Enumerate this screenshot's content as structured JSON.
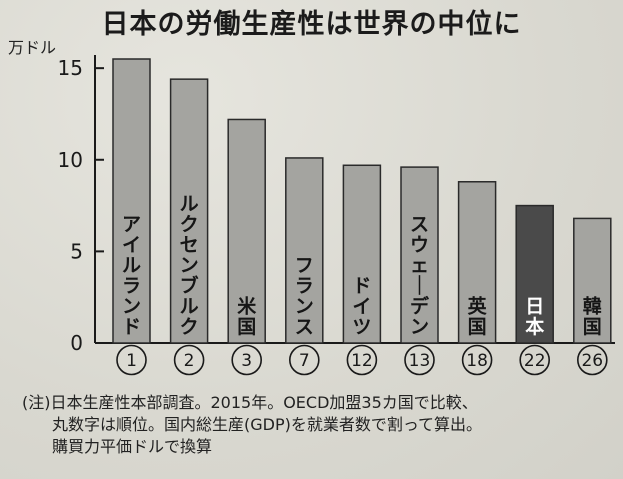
{
  "chart_data": {
    "type": "bar",
    "title": "日本の労働生産性は世界の中位に",
    "ylabel": "万ドル",
    "ylim": [
      0,
      15.5
    ],
    "yticks": [
      0,
      5,
      10,
      15
    ],
    "categories": [
      "アイルランド",
      "ルクセンブルク",
      "米国",
      "フランス",
      "ドイツ",
      "スウェーデン",
      "英国",
      "日本",
      "韓国"
    ],
    "ranks": [
      "1",
      "2",
      "3",
      "7",
      "12",
      "13",
      "18",
      "22",
      "26"
    ],
    "values": [
      15.5,
      14.4,
      12.2,
      10.1,
      9.7,
      9.6,
      8.8,
      7.5,
      6.8
    ],
    "highlight_index": 7,
    "colors": {
      "bar": "#a4a4a0",
      "highlight": "#4a4a4a",
      "axis": "#1a1a1a"
    },
    "grid": false
  },
  "notes": [
    "(注)日本生産性本部調査。2015年。OECD加盟35カ国で比較、",
    "丸数字は順位。国内総生産(GDP)を就業者数で割って算出。",
    "購買力平価ドルで換算"
  ]
}
